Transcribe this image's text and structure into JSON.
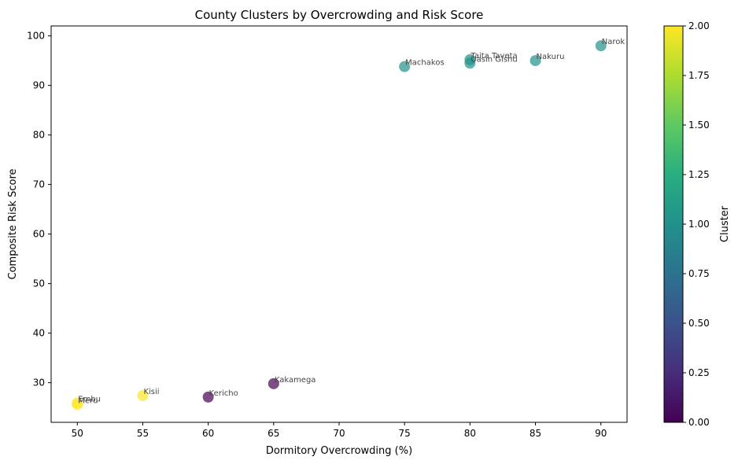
{
  "chart_data": {
    "type": "scatter",
    "title": "County Clusters by Overcrowding and Risk Score",
    "xlabel": "Dormitory Overcrowding (%)",
    "ylabel": "Composite Risk Score",
    "xlim": [
      48,
      92
    ],
    "ylim": [
      22,
      102
    ],
    "xticks": [
      50,
      55,
      60,
      65,
      70,
      75,
      80,
      85,
      90
    ],
    "yticks": [
      30,
      40,
      50,
      60,
      70,
      80,
      90,
      100
    ],
    "colorbar": {
      "label": "Cluster",
      "range": [
        0,
        2
      ],
      "ticks": [
        "0.00",
        "0.25",
        "0.50",
        "0.75",
        "1.00",
        "1.25",
        "1.50",
        "1.75",
        "2.00"
      ]
    },
    "grid": false,
    "points": [
      {
        "label": "Narok",
        "x": 90,
        "y": 98.0,
        "cluster": 1
      },
      {
        "label": "Taita Taveta",
        "x": 80,
        "y": 95.2,
        "cluster": 1
      },
      {
        "label": "Uasin Gishu",
        "x": 80,
        "y": 94.5,
        "cluster": 1
      },
      {
        "label": "Nakuru",
        "x": 85,
        "y": 95.0,
        "cluster": 1
      },
      {
        "label": "Machakos",
        "x": 75,
        "y": 93.8,
        "cluster": 1
      },
      {
        "label": "Kakamega",
        "x": 65,
        "y": 29.8,
        "cluster": 0
      },
      {
        "label": "Kericho",
        "x": 60,
        "y": 27.1,
        "cluster": 0
      },
      {
        "label": "Kisii",
        "x": 55,
        "y": 27.4,
        "cluster": 2
      },
      {
        "label": "Embu",
        "x": 50,
        "y": 25.9,
        "cluster": 2
      },
      {
        "label": "Meru",
        "x": 50,
        "y": 25.6,
        "cluster": 2
      }
    ]
  }
}
